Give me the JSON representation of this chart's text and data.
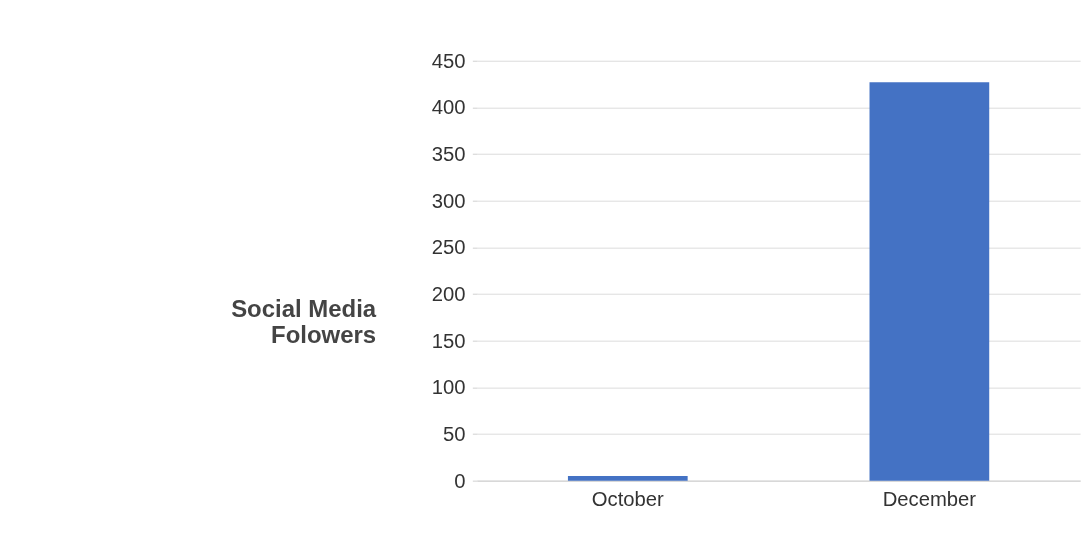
{
  "chart_data": {
    "type": "bar",
    "ylabel": "Social Media\nFolowers",
    "categories": [
      "October",
      "December"
    ],
    "values": [
      5,
      427
    ],
    "color": "#4472c4",
    "ylim": [
      0,
      450
    ],
    "yticks": [
      0,
      50,
      100,
      150,
      200,
      250,
      300,
      350,
      400,
      450
    ],
    "grid": "y"
  }
}
